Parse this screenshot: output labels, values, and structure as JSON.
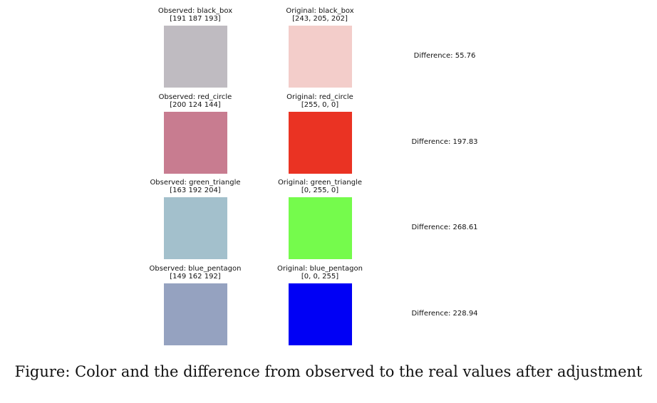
{
  "caption": "Figure: Color and the difference from observed to the real values after adjustment",
  "chart_data": {
    "type": "table",
    "rows": [
      {
        "observed_title": "Observed: black_box",
        "observed_rgb_label": "[191 187 193]",
        "observed_color": "#bfbbc1",
        "original_title": "Original: black_box",
        "original_rgb_label": "[243, 205, 202]",
        "original_color": "#f3cdca",
        "difference_label": "Difference: 55.76",
        "difference": 55.76
      },
      {
        "observed_title": "Observed: red_circle",
        "observed_rgb_label": "[200 124 144]",
        "observed_color": "#c87c90",
        "original_title": "Original: red_circle",
        "original_rgb_label": "[255, 0, 0]",
        "original_color": "#ea3323",
        "difference_label": "Difference: 197.83",
        "difference": 197.83
      },
      {
        "observed_title": "Observed: green_triangle",
        "observed_rgb_label": "[163 192 204]",
        "observed_color": "#a3c0cc",
        "original_title": "Original: green_triangle",
        "original_rgb_label": "[0, 255, 0]",
        "original_color": "#75fb4c",
        "difference_label": "Difference: 268.61",
        "difference": 268.61
      },
      {
        "observed_title": "Observed: blue_pentagon",
        "observed_rgb_label": "[149 162 192]",
        "observed_color": "#95a2c0",
        "original_title": "Original: blue_pentagon",
        "original_rgb_label": "[0, 0, 255]",
        "original_color": "#0000f5",
        "difference_label": "Difference: 228.94",
        "difference": 228.94
      }
    ]
  }
}
